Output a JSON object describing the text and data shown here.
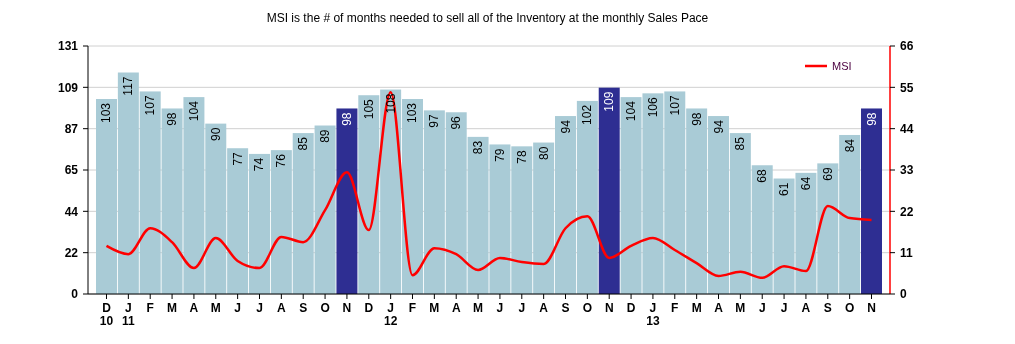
{
  "chart_data": {
    "type": "bar",
    "title": "MSI is the # of months needed to sell all of the Inventory at the monthly Sales Pace",
    "categories": [
      "D\n10",
      "J\n11",
      "F",
      "M",
      "A",
      "M",
      "J",
      "J",
      "A",
      "S",
      "O",
      "N",
      "D",
      "J\n12",
      "F",
      "M",
      "A",
      "M",
      "J",
      "J",
      "A",
      "S",
      "O",
      "N",
      "D",
      "J\n13",
      "F",
      "M",
      "A",
      "M",
      "J",
      "J",
      "A",
      "S",
      "O",
      "N"
    ],
    "series": [
      {
        "colors": [
          "#a9cbd6",
          "#a9cbd6",
          "#a9cbd6",
          "#a9cbd6",
          "#a9cbd6",
          "#a9cbd6",
          "#a9cbd6",
          "#a9cbd6",
          "#a9cbd6",
          "#a9cbd6",
          "#a9cbd6",
          "#2e2e92",
          "#a9cbd6",
          "#a9cbd6",
          "#a9cbd6",
          "#a9cbd6",
          "#a9cbd6",
          "#a9cbd6",
          "#a9cbd6",
          "#a9cbd6",
          "#a9cbd6",
          "#a9cbd6",
          "#a9cbd6",
          "#2e2e92",
          "#a9cbd6",
          "#a9cbd6",
          "#a9cbd6",
          "#a9cbd6",
          "#a9cbd6",
          "#a9cbd6",
          "#a9cbd6",
          "#a9cbd6",
          "#a9cbd6",
          "#a9cbd6",
          "#a9cbd6",
          "#2e2e92"
        ],
        "values": [
          103,
          117,
          107,
          98,
          104,
          90,
          77,
          74,
          76,
          85,
          89,
          98,
          105,
          108,
          103,
          97,
          96,
          83,
          79,
          78,
          80,
          94,
          102,
          109,
          104,
          106,
          107,
          98,
          94,
          85,
          68,
          61,
          64,
          69,
          84,
          98
        ],
        "value_labels": [
          "103",
          "117",
          "107",
          "98",
          "104",
          "90",
          "77",
          "74",
          "76",
          "85",
          "89",
          "98",
          "105",
          "108",
          "103",
          "97",
          "96",
          "83",
          "79",
          "78",
          "80",
          "94",
          "102",
          "109",
          "104",
          "106",
          "107",
          "98",
          "94",
          "85",
          "68",
          "61",
          "64",
          "69",
          "84",
          "98"
        ]
      },
      {
        "type": "line",
        "name": "MSI",
        "color": "#ff0000",
        "axis": "y2",
        "values": [
          12.8,
          10.6,
          17.5,
          13.8,
          6.9,
          14.9,
          8.8,
          6.9,
          15.2,
          13.8,
          22.3,
          32.4,
          17,
          53.7,
          5,
          12.2,
          10.6,
          6.4,
          9.6,
          8.5,
          8,
          17.5,
          20.7,
          9.6,
          12.8,
          14.9,
          11.7,
          8.2,
          4.8,
          5.9,
          4.3,
          7.4,
          6.1,
          23.4,
          20.2,
          19.7
        ]
      }
    ],
    "ylim": [
      0,
      131
    ],
    "yticks": [
      0,
      {
        "value": 21.83,
        "label": "22"
      },
      {
        "value": 43.67,
        "label": "44"
      },
      {
        "value": 65.5,
        "label": "65"
      },
      {
        "value": 87.33,
        "label": "87"
      },
      {
        "value": 109.17,
        "label": "109"
      },
      131
    ],
    "y2lim": [
      0,
      66
    ],
    "y2ticks": [
      0,
      11,
      22,
      33,
      44,
      55,
      66
    ],
    "grid": "y",
    "legend": "top right",
    "marker": "none",
    "line_style": "solid"
  }
}
